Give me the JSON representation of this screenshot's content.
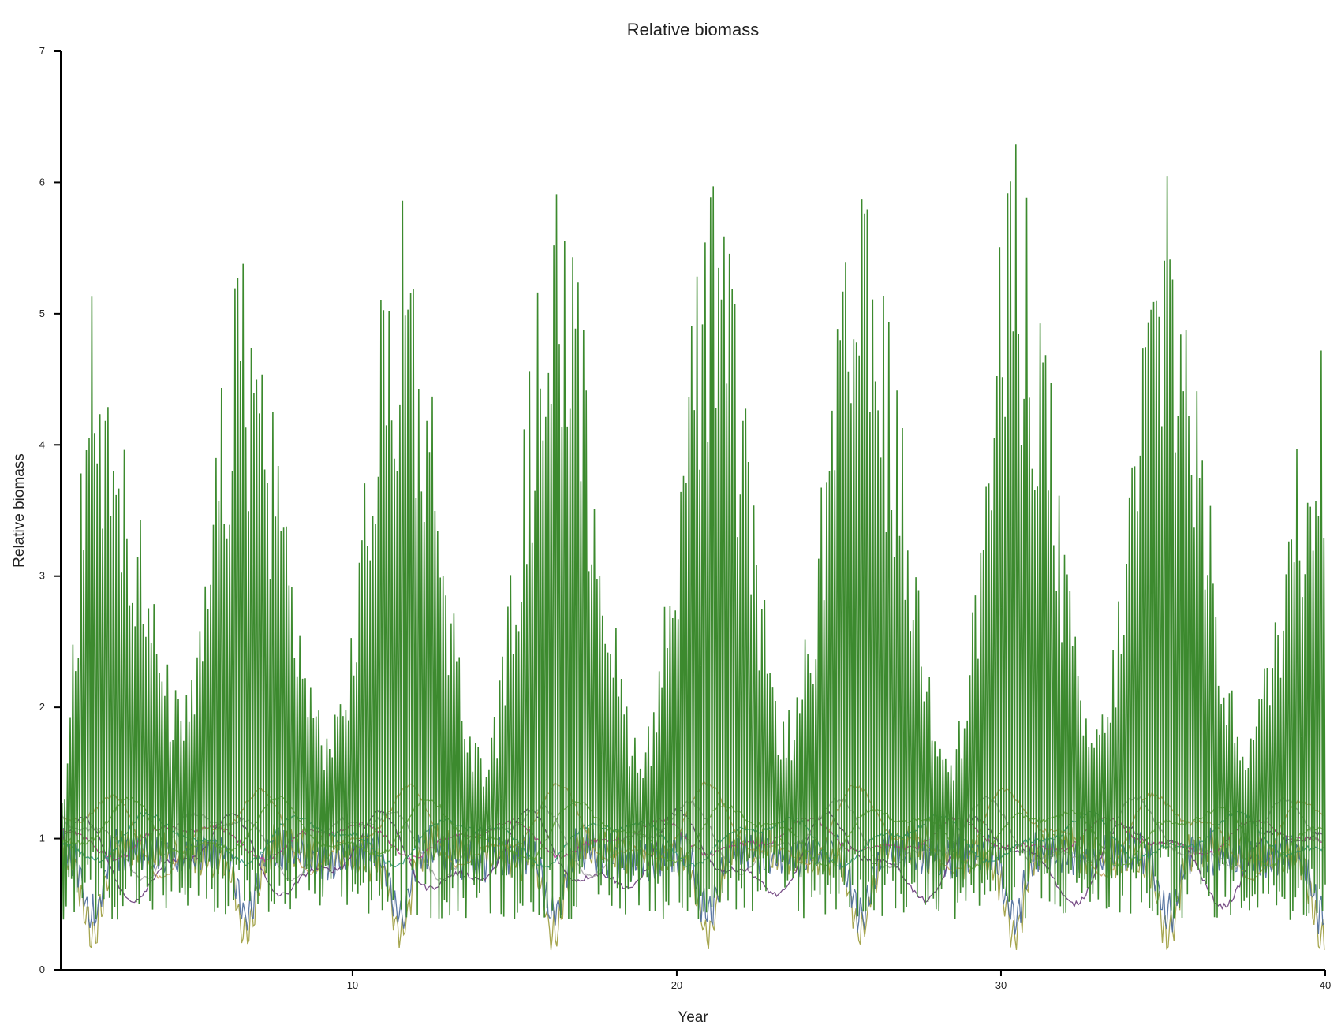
{
  "chart_data": {
    "type": "line",
    "title": "Relative biomass",
    "xlabel": "Year",
    "ylabel": "Relative biomass",
    "xlim": [
      1,
      40
    ],
    "ylim": [
      0,
      7
    ],
    "x_ticks": [
      10,
      20,
      30,
      40
    ],
    "y_ticks": [
      0,
      1,
      2,
      3,
      4,
      5,
      6,
      7
    ],
    "grid": false,
    "legend": "none",
    "series": [
      {
        "color": "#3c8a2e",
        "pattern": "high-frequency oscillation with cyclic envelope",
        "baseline": 1.0,
        "trough_min": 0.38,
        "cycle_peaks": [
          {
            "x": 2.0,
            "y": 5.13
          },
          {
            "x": 6.6,
            "y": 5.38
          },
          {
            "x": 11.5,
            "y": 5.86
          },
          {
            "x": 16.3,
            "y": 5.91
          },
          {
            "x": 21.1,
            "y": 5.97
          },
          {
            "x": 25.7,
            "y": 5.87
          },
          {
            "x": 30.5,
            "y": 6.29
          },
          {
            "x": 35.1,
            "y": 6.05
          },
          {
            "x": 39.9,
            "y": 4.72
          }
        ],
        "cycle_troughs": [
          {
            "x": 4.8,
            "y": 2.1
          },
          {
            "x": 9.3,
            "y": 1.9
          },
          {
            "x": 14.0,
            "y": 1.7
          },
          {
            "x": 18.9,
            "y": 1.8
          },
          {
            "x": 23.4,
            "y": 2.0
          },
          {
            "x": 28.5,
            "y": 1.8
          },
          {
            "x": 32.9,
            "y": 1.9
          },
          {
            "x": 37.5,
            "y": 1.9
          }
        ]
      },
      {
        "color": "#9c9c3c",
        "pattern": "oscillating, dips at cycle peaks",
        "baseline": 0.9,
        "trough_min": 0.2
      },
      {
        "color": "#4a6a9a",
        "pattern": "oscillating, dips at cycle peaks",
        "baseline": 0.9,
        "trough_min": 0.3
      },
      {
        "color": "#6a3c7a",
        "pattern": "slow wave",
        "baseline": 0.85,
        "trough_min": 0.5
      },
      {
        "color": "#c03c9c",
        "pattern": "slow wave",
        "baseline": 1.0,
        "trough_min": 0.85
      },
      {
        "color": "#3c9c8a",
        "pattern": "slow wave",
        "baseline": 1.0,
        "trough_min": 0.8
      },
      {
        "color": "#7ab04a",
        "pattern": "slow wave",
        "baseline": 1.05,
        "trough_min": 0.8
      },
      {
        "color": "#c8a060",
        "pattern": "slow wave",
        "baseline": 1.05,
        "trough_min": 0.7
      },
      {
        "color": "#a8a8a8",
        "pattern": "slow wave",
        "baseline": 1.0,
        "trough_min": 0.7
      }
    ]
  }
}
